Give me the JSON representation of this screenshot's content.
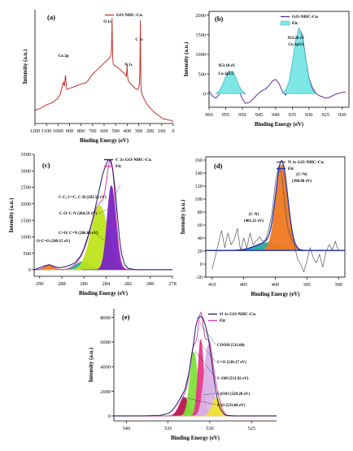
{
  "chart_data": [
    {
      "panel_label": "(a)",
      "type": "line",
      "xlabel": "Binding Energy (eV)",
      "ylabel": "Intensity (a.u.)",
      "xlim": [
        1200,
        0
      ],
      "x_ticks": [
        "1200",
        "1100",
        "1000",
        "900",
        "800",
        "700",
        "600",
        "500",
        "400",
        "300",
        "200",
        "100",
        "0"
      ],
      "y_ticks": [],
      "legend": [
        {
          "label": "GO-NHC-Cu",
          "color": "#c0342b"
        }
      ],
      "legend_position": "top-right",
      "annotations": [
        {
          "text": "O 1s",
          "x": 531
        },
        {
          "text": "C 1s",
          "x": 285
        },
        {
          "text": "N 1s",
          "x": 400
        },
        {
          "text": "Cu 2p",
          "x": 935
        }
      ],
      "series": [
        {
          "name": "GO-NHC-Cu",
          "color": "#c0342b",
          "x": [
            1200,
            1150,
            1100,
            1050,
            1000,
            980,
            965,
            955,
            945,
            935,
            925,
            900,
            850,
            800,
            760,
            740,
            720,
            700,
            680,
            660,
            640,
            620,
            600,
            580,
            560,
            545,
            538,
            533,
            531,
            529,
            525,
            520,
            500,
            480,
            460,
            440,
            420,
            408,
            402,
            400,
            398,
            395,
            390,
            370,
            350,
            330,
            310,
            295,
            290,
            287,
            285,
            283,
            281,
            278,
            270,
            250,
            230,
            200,
            180,
            160,
            140,
            120,
            100,
            80,
            60,
            40,
            20,
            10,
            0
          ],
          "y": [
            12,
            14,
            17,
            19,
            23,
            27,
            33,
            38,
            34,
            44,
            31,
            32,
            34,
            36,
            37,
            39,
            42,
            45,
            47,
            49,
            51,
            53,
            55,
            57,
            59,
            61,
            64,
            80,
            96,
            76,
            60,
            54,
            52,
            51,
            49,
            47,
            45,
            43,
            49,
            54,
            47,
            42,
            39,
            36,
            34,
            32,
            31,
            34,
            45,
            72,
            94,
            60,
            38,
            30,
            26,
            22,
            18,
            14,
            12,
            10,
            8,
            7,
            5,
            4,
            4,
            3,
            3,
            2,
            2
          ]
        }
      ]
    },
    {
      "panel_label": "(b)",
      "type": "line",
      "xlabel": "Binding Energy (eV)",
      "ylabel": "Intensity (a.u.)",
      "xlim": [
        960,
        918
      ],
      "ylim": [
        -350,
        2100
      ],
      "x_ticks": [
        "960",
        "955",
        "950",
        "945",
        "940",
        "935",
        "930",
        "925",
        "920"
      ],
      "y_ticks": [
        "0",
        "500",
        "1000",
        "1500",
        "2000"
      ],
      "legend": [
        {
          "label": "GO-NHC-Cu",
          "color": "#5a2ea6"
        },
        {
          "label": "Fit",
          "color": "#7ee6e6"
        }
      ],
      "legend_position": "top-right",
      "annotations": [
        {
          "text": "953.18 eV",
          "x": 953.18
        },
        {
          "text": "Cu 2p1/2",
          "x": 953.18
        },
        {
          "text": "933.28 eV",
          "x": 933.28
        },
        {
          "text": "Cu 2p3/2",
          "x": 933.28
        }
      ],
      "series": [
        {
          "name": "GO-NHC-Cu",
          "color": "#5a2ea6",
          "x": [
            960,
            959,
            958,
            957,
            956,
            955,
            954,
            953,
            952,
            951,
            950,
            949,
            948,
            947,
            946,
            945,
            944,
            943,
            942,
            941,
            940,
            939,
            938,
            937,
            936,
            935,
            934,
            933,
            932,
            931,
            930,
            929,
            928,
            927,
            926,
            925,
            924,
            923,
            922,
            921,
            920,
            919
          ],
          "y": [
            60,
            -60,
            -120,
            -30,
            190,
            420,
            570,
            550,
            350,
            70,
            -140,
            -250,
            -230,
            -160,
            -70,
            20,
            80,
            120,
            200,
            320,
            360,
            260,
            60,
            -40,
            150,
            650,
            1300,
            1650,
            1500,
            900,
            400,
            150,
            20,
            -50,
            -80,
            -120,
            -100,
            -60,
            -20,
            10,
            30,
            40
          ]
        },
        {
          "name": "Fit",
          "color": "#7ee6e6",
          "x": [
            958,
            957,
            956,
            955,
            954,
            953,
            952,
            951,
            950,
            949
          ],
          "y": [
            0,
            60,
            220,
            430,
            560,
            570,
            420,
            200,
            50,
            0
          ]
        },
        {
          "name": "Fit",
          "color": "#7ee6e6",
          "x": [
            938,
            937,
            936,
            935,
            934,
            933,
            932,
            931,
            930,
            929,
            928
          ],
          "y": [
            0,
            80,
            300,
            800,
            1350,
            1680,
            1450,
            900,
            380,
            100,
            0
          ]
        }
      ]
    },
    {
      "panel_label": "(c)",
      "type": "area",
      "xlabel": "Binding Energy (eV)",
      "ylabel": "Intensity (a.u.)",
      "xlim": [
        290.5,
        278
      ],
      "ylim": [
        -200,
        3500
      ],
      "x_ticks": [
        "290",
        "288",
        "286",
        "284",
        "282",
        "280",
        "278"
      ],
      "y_ticks": [
        "0",
        "500",
        "1000",
        "1500",
        "2000",
        "2500",
        "3000",
        "3500"
      ],
      "legend": [
        {
          "label": "C 1s GO-NHC-Cu",
          "color": "#1a1a6e"
        },
        {
          "label": "Fit",
          "color": "#e040a0"
        }
      ],
      "legend_position": "top-right",
      "annotations": [
        {
          "text": "C-C, C=C, C-H (283.52 eV)"
        },
        {
          "text": "C-O/ C-N (284.59 eV)"
        },
        {
          "text": "C=O/ C=N (286.06 eV)"
        },
        {
          "text": "O-C=O (289.15 eV)"
        }
      ],
      "peaks": [
        {
          "label": "O-C=O",
          "center": 289.15,
          "height": 150,
          "fwhm": 0.9,
          "color": "#f07820"
        },
        {
          "label": "C=O/ C=N",
          "center": 286.06,
          "height": 250,
          "fwhm": 1.6,
          "color": "#2aa6a0"
        },
        {
          "label": "C-O/ C-N",
          "center": 284.59,
          "height": 1950,
          "fwhm": 1.8,
          "color": "#bde41e"
        },
        {
          "label": "C-C, C=C, C-H",
          "center": 283.52,
          "height": 2550,
          "fwhm": 0.9,
          "color": "#7a22c4"
        }
      ],
      "series": [
        {
          "name": "C 1s GO-NHC-Cu",
          "color": "#1a1a6e",
          "x": [
            290.5,
            290,
            289.5,
            289.15,
            288.8,
            288.3,
            287.8,
            287.3,
            286.8,
            286.3,
            286,
            285.6,
            285.2,
            284.9,
            284.6,
            284.3,
            284,
            283.8,
            283.6,
            283.4,
            283.2,
            283,
            282.8,
            282.6,
            282.3,
            282,
            281.5,
            281,
            280,
            279,
            278
          ],
          "y": [
            0,
            60,
            120,
            150,
            110,
            60,
            80,
            130,
            210,
            420,
            640,
            1050,
            1550,
            2000,
            2450,
            2900,
            3200,
            3340,
            3300,
            3050,
            2500,
            1750,
            1000,
            480,
            150,
            40,
            10,
            0,
            0,
            0,
            0
          ]
        }
      ]
    },
    {
      "panel_label": "(d)",
      "type": "line",
      "xlabel": "Binding Energy (eV)",
      "ylabel": "Intensity (a.u.)",
      "xlim": [
        411,
        389
      ],
      "ylim": [
        -20,
        165
      ],
      "x_ticks": [
        "410",
        "405",
        "400",
        "395",
        "390"
      ],
      "y_ticks": [
        "-20",
        "0",
        "20",
        "40",
        "60",
        "80",
        "100",
        "120",
        "140",
        "160"
      ],
      "legend": [
        {
          "label": "N 1s GO-NHC-Cu",
          "color": "#555555"
        },
        {
          "label": "Fit",
          "color": "#1f2fb0"
        }
      ],
      "legend_position": "top-right",
      "annotations": [
        {
          "text": "(C=N)"
        },
        {
          "text": "(398.98 eV)"
        },
        {
          "text": "(C-N)"
        },
        {
          "text": "(401.21 eV)"
        }
      ],
      "baseline": 21,
      "peaks": [
        {
          "label": "C-N",
          "center": 401.21,
          "height": 12,
          "fwhm": 4.5,
          "color": "#2aa6a0"
        },
        {
          "label": "C=N",
          "center": 398.98,
          "height": 132,
          "fwhm": 2.2,
          "color": "#f07820"
        }
      ],
      "series": [
        {
          "name": "N 1s GO-NHC-Cu",
          "color": "#555555",
          "x": [
            410,
            409.5,
            409,
            408.5,
            408,
            407.5,
            407,
            406.5,
            406,
            405.5,
            405,
            404.5,
            404,
            403.5,
            403,
            402.5,
            402,
            401.5,
            401,
            400.5,
            400,
            399.5,
            399,
            398.5,
            398,
            397.5,
            397,
            396.5,
            396,
            395.5,
            395,
            394.5,
            394,
            393.5,
            393,
            392.5,
            392,
            391.5,
            391,
            390.5,
            390
          ],
          "y": [
            -8,
            12,
            32,
            52,
            25,
            48,
            30,
            38,
            55,
            20,
            40,
            25,
            48,
            30,
            36,
            42,
            35,
            38,
            55,
            80,
            125,
            150,
            140,
            90,
            55,
            40,
            30,
            8,
            0,
            -12,
            5,
            25,
            10,
            2,
            15,
            -5,
            18,
            30,
            22,
            35,
            20
          ]
        }
      ]
    },
    {
      "panel_label": "(e)",
      "type": "area",
      "xlabel": "Binding Energy (eV)",
      "ylabel": "Intensity (a.u.)",
      "xlim": [
        541.5,
        522
      ],
      "ylim": [
        -400,
        8700
      ],
      "x_ticks": [
        "540",
        "535",
        "530",
        "525"
      ],
      "y_ticks": [
        "0",
        "2000",
        "4000",
        "6000",
        "8000"
      ],
      "legend": [
        {
          "label": "O 1s GO-NHC-Cu",
          "color": "#1a1a6e"
        },
        {
          "label": "Fit",
          "color": "#e040a0"
        }
      ],
      "legend_position": "top-right",
      "annotations": [
        {
          "text": "COOH (531.08)"
        },
        {
          "text": "C=O (530.17 eV)"
        },
        {
          "text": "C-OH (531.92 eV)"
        },
        {
          "text": "C(O)O (529.20 eV)"
        },
        {
          "text": "C-O (533.06 eV)"
        }
      ],
      "peaks": [
        {
          "label": "C-O",
          "center": 533.06,
          "height": 1500,
          "fwhm": 1.4,
          "color": "#b5174a"
        },
        {
          "label": "C-OH",
          "center": 531.92,
          "height": 5200,
          "fwhm": 1.1,
          "color": "#7ee13a"
        },
        {
          "label": "COOH",
          "center": 531.08,
          "height": 6200,
          "fwhm": 0.8,
          "color": "#e8388a"
        },
        {
          "label": "C=O",
          "center": 530.17,
          "height": 5800,
          "fwhm": 1.2,
          "color": "#d9b3e8"
        },
        {
          "label": "C(O)O",
          "center": 529.2,
          "height": 1500,
          "fwhm": 1.2,
          "color": "#f0e032"
        }
      ],
      "series": [
        {
          "name": "O 1s GO-NHC-Cu",
          "color": "#1a1a6e",
          "x": [
            541.5,
            540,
            538,
            536,
            535,
            534.5,
            534,
            533.5,
            533,
            532.5,
            532,
            531.7,
            531.4,
            531.1,
            530.8,
            530.5,
            530.2,
            529.9,
            529.6,
            529.3,
            529,
            528.7,
            528.3,
            528,
            527,
            526,
            525,
            522
          ],
          "y": [
            0,
            0,
            0,
            50,
            200,
            450,
            900,
            1500,
            2100,
            3500,
            5600,
            7200,
            8000,
            8100,
            7900,
            7300,
            6400,
            5100,
            3500,
            2100,
            1100,
            500,
            150,
            50,
            0,
            0,
            0,
            0
          ]
        }
      ]
    }
  ]
}
